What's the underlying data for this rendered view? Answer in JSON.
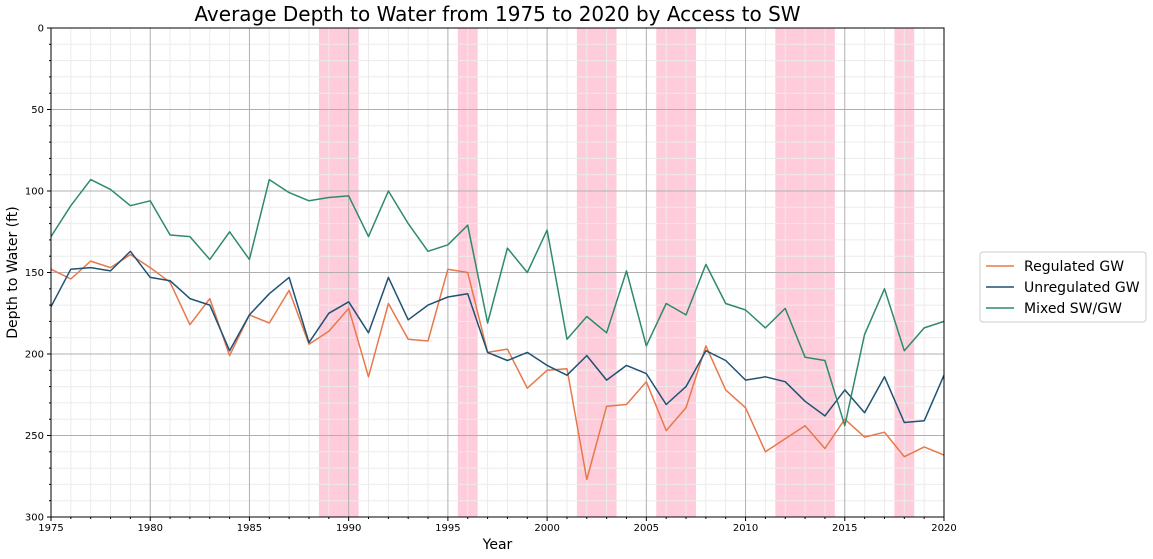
{
  "chart_data": {
    "type": "line",
    "title": "Average Depth to Water from 1975 to 2020 by Access to SW",
    "xlabel": "Year",
    "ylabel": "Depth to Water (ft)",
    "xlim": [
      1975,
      2020
    ],
    "ylim": [
      300,
      0
    ],
    "y_inverted": true,
    "grid": true,
    "minor_grid": true,
    "legend_position": "outside right",
    "x_ticks": [
      1975,
      1980,
      1985,
      1990,
      1995,
      2000,
      2005,
      2010,
      2015,
      2020
    ],
    "y_ticks": [
      0,
      50,
      100,
      150,
      200,
      250,
      300
    ],
    "shaded_periods": [
      [
        1988.5,
        1990.5
      ],
      [
        1995.5,
        1996.5
      ],
      [
        2001.5,
        2003.5
      ],
      [
        2005.5,
        2007.5
      ],
      [
        2011.5,
        2014.5
      ],
      [
        2017.5,
        2018.5
      ]
    ],
    "shade_color": "#ffccdb",
    "x": [
      1975,
      1976,
      1977,
      1978,
      1979,
      1980,
      1981,
      1982,
      1983,
      1984,
      1985,
      1986,
      1987,
      1988,
      1989,
      1990,
      1991,
      1992,
      1993,
      1994,
      1995,
      1996,
      1997,
      1998,
      1999,
      2000,
      2001,
      2002,
      2003,
      2004,
      2005,
      2006,
      2007,
      2008,
      2009,
      2010,
      2011,
      2012,
      2013,
      2014,
      2015,
      2016,
      2017,
      2018,
      2019,
      2020
    ],
    "series": [
      {
        "name": "Regulated GW",
        "color": "#e8784a",
        "values": [
          148,
          154,
          143,
          147,
          139,
          147,
          156,
          182,
          166,
          201,
          176,
          181,
          161,
          194,
          186,
          172,
          214,
          169,
          191,
          192,
          148,
          150,
          199,
          197,
          221,
          210,
          209,
          277,
          232,
          231,
          217,
          247,
          233,
          195,
          222,
          233,
          260,
          252,
          244,
          258,
          240,
          251,
          248,
          263,
          257,
          262
        ]
      },
      {
        "name": "Unregulated GW",
        "color": "#1f5275",
        "values": [
          171,
          148,
          147,
          149,
          137,
          153,
          155,
          166,
          170,
          198,
          176,
          163,
          153,
          193,
          175,
          168,
          187,
          153,
          179,
          170,
          165,
          163,
          199,
          204,
          199,
          207,
          213,
          201,
          216,
          207,
          212,
          231,
          220,
          198,
          204,
          216,
          214,
          217,
          229,
          238,
          222,
          236,
          214,
          242,
          241,
          213
        ]
      },
      {
        "name": "Mixed SW/GW",
        "color": "#2e8a6e",
        "values": [
          128,
          109,
          93,
          99,
          109,
          106,
          127,
          128,
          142,
          125,
          142,
          93,
          101,
          106,
          104,
          103,
          128,
          100,
          120,
          137,
          133,
          121,
          181,
          135,
          150,
          124,
          191,
          177,
          187,
          149,
          195,
          169,
          176,
          145,
          169,
          173,
          184,
          172,
          202,
          204,
          244,
          188,
          160,
          198,
          184,
          180
        ]
      }
    ]
  }
}
